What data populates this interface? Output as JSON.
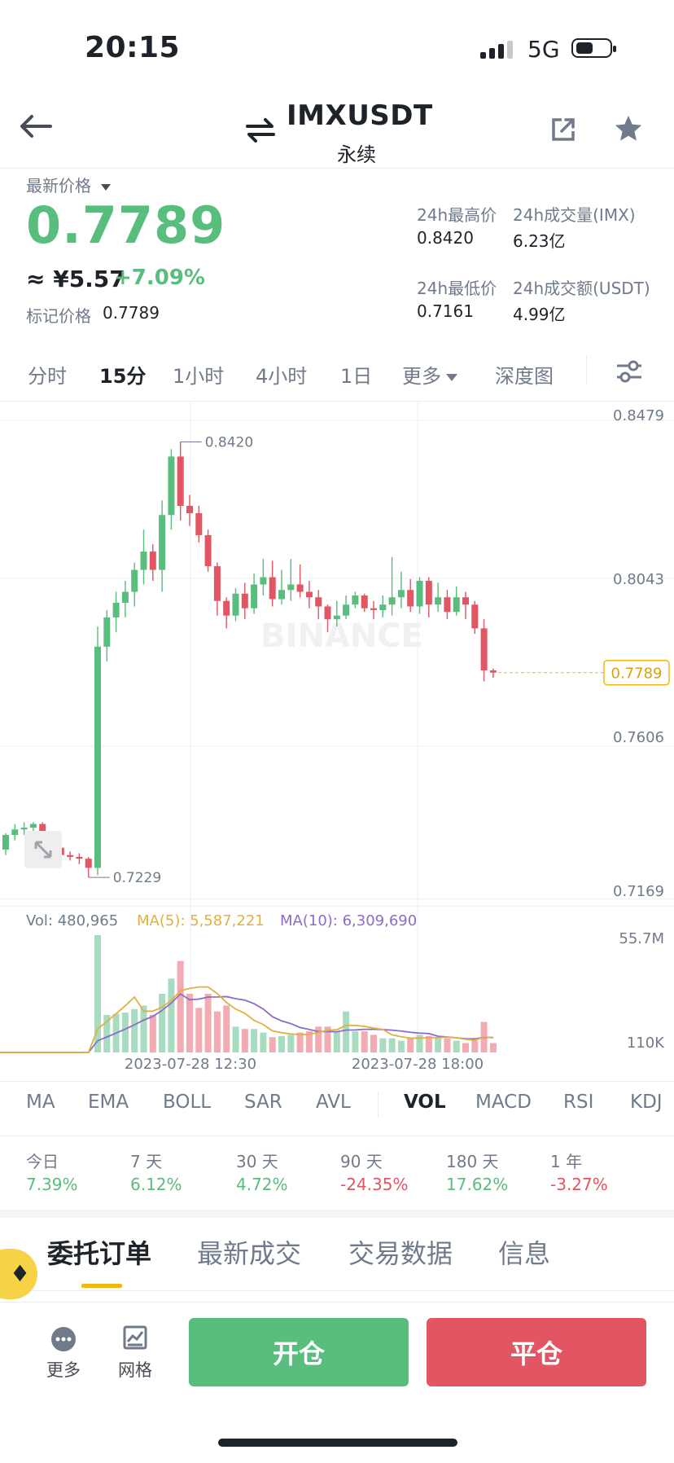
{
  "status_bar": {
    "time": "20:15",
    "network": "5G"
  },
  "header": {
    "symbol": "IMXUSDT",
    "contract_type": "永续",
    "icons": [
      "back-arrow-icon",
      "swap-arrows-icon",
      "share-icon",
      "star-icon"
    ]
  },
  "ticker": {
    "last_price_label": "最新价格",
    "last_price": "0.7789",
    "cny_price": "≈ ¥5.57",
    "change_pct": "+7.09%",
    "mark_label": "标记价格",
    "mark_price": "0.7789",
    "high_label": "24h最高价",
    "high_value": "0.8420",
    "vol_label": "24h成交量(IMX)",
    "vol_value": "6.23亿",
    "low_label": "24h最低价",
    "low_value": "0.7161",
    "turnover_label": "24h成交额(USDT)",
    "turnover_value": "4.99亿"
  },
  "interval_tabs": [
    "分时",
    "15分",
    "1小时",
    "4小时",
    "1日",
    "更多",
    "深度图"
  ],
  "active_interval": "15分",
  "chart_data": {
    "type": "candlestick",
    "watermark": "BINANCE",
    "y_axis_labels": [
      "0.8479",
      "0.8043",
      "0.7606",
      "0.7169"
    ],
    "ylim": [
      0.7169,
      0.8479
    ],
    "last_price_tag": "0.7789",
    "high_marker": "0.8420",
    "low_marker": "0.7229",
    "x_axis_labels": [
      "2023-07-28 12:30",
      "2023-07-28 18:00"
    ],
    "candles": [
      [
        0.7305,
        0.7345,
        0.729,
        0.735
      ],
      [
        0.7345,
        0.736,
        0.733,
        0.7375
      ],
      [
        0.736,
        0.7365,
        0.7345,
        0.738
      ],
      [
        0.7365,
        0.7375,
        0.734,
        0.738
      ],
      [
        0.7375,
        0.734,
        0.733,
        0.738
      ],
      [
        0.734,
        0.731,
        0.73,
        0.735
      ],
      [
        0.731,
        0.729,
        0.728,
        0.732
      ],
      [
        0.729,
        0.7285,
        0.7275,
        0.73
      ],
      [
        0.7285,
        0.728,
        0.7265,
        0.7295
      ],
      [
        0.728,
        0.7255,
        0.7229,
        0.7285
      ],
      [
        0.7255,
        0.786,
        0.7235,
        0.7915
      ],
      [
        0.786,
        0.794,
        0.782,
        0.796
      ],
      [
        0.794,
        0.798,
        0.79,
        0.801
      ],
      [
        0.798,
        0.801,
        0.794,
        0.804
      ],
      [
        0.801,
        0.807,
        0.797,
        0.809
      ],
      [
        0.807,
        0.812,
        0.803,
        0.818
      ],
      [
        0.812,
        0.807,
        0.804,
        0.814
      ],
      [
        0.807,
        0.822,
        0.801,
        0.826
      ],
      [
        0.822,
        0.838,
        0.818,
        0.84
      ],
      [
        0.838,
        0.8245,
        0.8205,
        0.842
      ],
      [
        0.8245,
        0.8225,
        0.819,
        0.8275
      ],
      [
        0.8225,
        0.8165,
        0.8145,
        0.8245
      ],
      [
        0.8165,
        0.808,
        0.8065,
        0.818
      ],
      [
        0.808,
        0.7985,
        0.7945,
        0.809
      ],
      [
        0.7985,
        0.7945,
        0.791,
        0.7995
      ],
      [
        0.7945,
        0.8005,
        0.793,
        0.802
      ],
      [
        0.8005,
        0.7965,
        0.7935,
        0.8035
      ],
      [
        0.7965,
        0.803,
        0.795,
        0.806
      ],
      [
        0.803,
        0.805,
        0.8,
        0.81
      ],
      [
        0.805,
        0.799,
        0.797,
        0.8095
      ],
      [
        0.799,
        0.8015,
        0.7975,
        0.807
      ],
      [
        0.8015,
        0.803,
        0.7985,
        0.81
      ],
      [
        0.803,
        0.801,
        0.7995,
        0.8085
      ],
      [
        0.801,
        0.7995,
        0.7965,
        0.804
      ],
      [
        0.7995,
        0.797,
        0.7935,
        0.8015
      ],
      [
        0.797,
        0.7935,
        0.79,
        0.7975
      ],
      [
        0.7935,
        0.7945,
        0.7915,
        0.7985
      ],
      [
        0.7945,
        0.7975,
        0.7935,
        0.8
      ],
      [
        0.7975,
        0.8,
        0.7965,
        0.801
      ],
      [
        0.8,
        0.7965,
        0.7955,
        0.8005
      ],
      [
        0.7965,
        0.796,
        0.7935,
        0.7985
      ],
      [
        0.796,
        0.7975,
        0.794,
        0.8
      ],
      [
        0.7975,
        0.7995,
        0.7945,
        0.8105
      ],
      [
        0.7995,
        0.8015,
        0.7965,
        0.8065
      ],
      [
        0.8015,
        0.797,
        0.7955,
        0.8045
      ],
      [
        0.797,
        0.804,
        0.795,
        0.805
      ],
      [
        0.804,
        0.7975,
        0.794,
        0.805
      ],
      [
        0.7975,
        0.7995,
        0.7955,
        0.8035
      ],
      [
        0.7995,
        0.7955,
        0.7935,
        0.8015
      ],
      [
        0.7955,
        0.7995,
        0.7945,
        0.8025
      ],
      [
        0.7995,
        0.7975,
        0.7935,
        0.801
      ],
      [
        0.7975,
        0.791,
        0.7895,
        0.7985
      ],
      [
        0.791,
        0.7795,
        0.7765,
        0.7935
      ],
      [
        0.7795,
        0.7789,
        0.7775,
        0.78
      ]
    ],
    "volume_legend": {
      "vol": "Vol: 480,965",
      "ma5": "MA(5): 5,587,221",
      "ma10": "MA(10): 6,309,690"
    },
    "volume_axis_labels": [
      "55.7M",
      "110K"
    ],
    "volume_ma5_color": "#e0b040",
    "volume_ma10_color": "#8c6cc8",
    "up_color": "#58bd7d",
    "down_color": "#e25563"
  },
  "indicators": [
    "MA",
    "EMA",
    "BOLL",
    "SAR",
    "AVL",
    "VOL",
    "MACD",
    "RSI",
    "KDJ"
  ],
  "active_indicator": "VOL",
  "performance": [
    {
      "label": "今日",
      "value": "7.39%",
      "dir": "up"
    },
    {
      "label": "7 天",
      "value": "6.12%",
      "dir": "up"
    },
    {
      "label": "30 天",
      "value": "4.72%",
      "dir": "up"
    },
    {
      "label": "90 天",
      "value": "-24.35%",
      "dir": "down"
    },
    {
      "label": "180 天",
      "value": "17.62%",
      "dir": "up"
    },
    {
      "label": "1 年",
      "value": "-3.27%",
      "dir": "down"
    }
  ],
  "order_tabs": [
    "委托订单",
    "最新成交",
    "交易数据",
    "信息"
  ],
  "active_order_tab": "委托订单",
  "bottom_bar": {
    "more_label": "更多",
    "grid_label": "网格",
    "open_label": "开仓",
    "close_label": "平仓",
    "open_color": "#58bd7d",
    "close_color": "#e25563"
  }
}
